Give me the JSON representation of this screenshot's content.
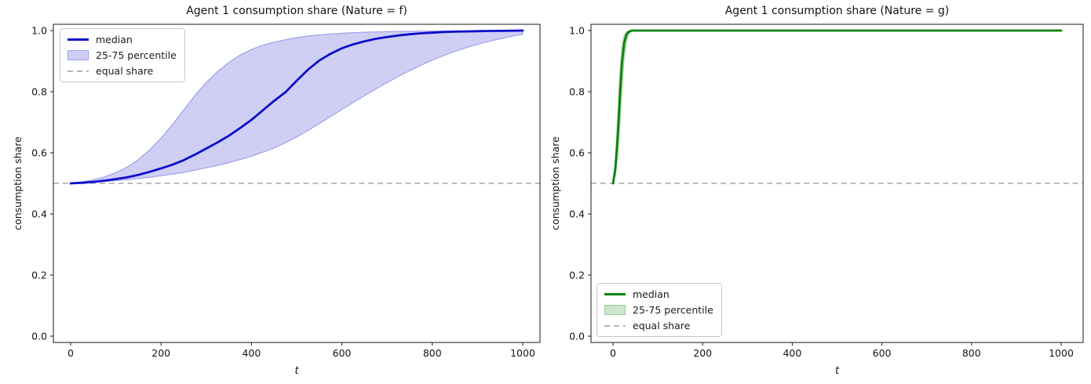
{
  "figure": {
    "background": "#ffffff",
    "spine_color": "#1a1a1a"
  },
  "chart_data": [
    {
      "type": "line",
      "title": "Agent 1 consumption share (Nature = f)",
      "xlabel": "t",
      "ylabel": "consumption share",
      "xlim": [
        0,
        1000
      ],
      "ylim": [
        0.0,
        1.0
      ],
      "grid": false,
      "legend_pos": "upper left",
      "x_ticks": [
        0,
        200,
        400,
        600,
        800,
        1000
      ],
      "y_ticks": [
        "0.0",
        "0.2",
        "0.4",
        "0.6",
        "0.8",
        "1.0"
      ],
      "median_color": "#0d0dcd",
      "band_fill": "#cfcff5",
      "band_edge": "#a0a0ea",
      "equal_share": 0.5,
      "equal_color": "#b4b4b4",
      "legend": [
        {
          "label": "median",
          "swatch": "line",
          "color": "#0d0dcd"
        },
        {
          "label": "25-75 percentile",
          "swatch": "patch",
          "fill": "#cfcff5",
          "edge": "#a0a0ea"
        },
        {
          "label": "equal share",
          "swatch": "dash",
          "color": "#b4b4b4"
        }
      ],
      "x": [
        0,
        25,
        50,
        75,
        100,
        125,
        150,
        175,
        200,
        225,
        250,
        275,
        300,
        325,
        350,
        375,
        400,
        425,
        450,
        475,
        500,
        525,
        550,
        575,
        600,
        625,
        650,
        675,
        700,
        725,
        750,
        775,
        800,
        825,
        850,
        875,
        900,
        925,
        950,
        975,
        1000
      ],
      "series": [
        {
          "name": "median",
          "values": [
            0.5,
            0.502,
            0.505,
            0.509,
            0.514,
            0.52,
            0.528,
            0.538,
            0.549,
            0.561,
            0.576,
            0.594,
            0.614,
            0.634,
            0.656,
            0.681,
            0.708,
            0.739,
            0.77,
            0.798,
            0.836,
            0.872,
            0.902,
            0.924,
            0.942,
            0.955,
            0.965,
            0.973,
            0.979,
            0.984,
            0.988,
            0.991,
            0.993,
            0.995,
            0.9963,
            0.9972,
            0.998,
            0.9986,
            0.999,
            0.9995,
            1.0
          ]
        },
        {
          "name": "p75",
          "values": [
            0.5,
            0.505,
            0.512,
            0.521,
            0.535,
            0.553,
            0.578,
            0.61,
            0.648,
            0.692,
            0.74,
            0.788,
            0.83,
            0.866,
            0.896,
            0.92,
            0.938,
            0.952,
            0.962,
            0.97,
            0.977,
            0.982,
            0.986,
            0.989,
            0.991,
            0.993,
            0.9945,
            0.9955,
            0.9963,
            0.997,
            0.9976,
            0.9981,
            0.9985,
            0.9988,
            0.999,
            0.9992,
            0.9994,
            0.9996,
            0.9997,
            0.9998,
            1.0
          ]
        },
        {
          "name": "p25",
          "values": [
            0.5,
            0.502,
            0.504,
            0.506,
            0.509,
            0.512,
            0.516,
            0.52,
            0.525,
            0.53,
            0.536,
            0.543,
            0.551,
            0.559,
            0.568,
            0.578,
            0.589,
            0.602,
            0.616,
            0.633,
            0.652,
            0.673,
            0.696,
            0.719,
            0.742,
            0.765,
            0.787,
            0.809,
            0.83,
            0.85,
            0.869,
            0.887,
            0.903,
            0.918,
            0.932,
            0.944,
            0.955,
            0.965,
            0.973,
            0.981,
            0.988
          ]
        }
      ]
    },
    {
      "type": "line",
      "title": "Agent 1 consumption share (Nature = g)",
      "xlabel": "t",
      "ylabel": "consumption share",
      "xlim": [
        0,
        1000
      ],
      "ylim": [
        0.0,
        1.0
      ],
      "grid": false,
      "legend_pos": "lower left",
      "x_ticks": [
        0,
        200,
        400,
        600,
        800,
        1000
      ],
      "y_ticks": [
        "0.0",
        "0.2",
        "0.4",
        "0.6",
        "0.8",
        "1.0"
      ],
      "median_color": "#0b830b",
      "band_fill": "#cce5cc",
      "band_edge": "#99cc99",
      "equal_share": 0.5,
      "equal_color": "#b4b4b4",
      "legend": [
        {
          "label": "median",
          "swatch": "line",
          "color": "#0b830b"
        },
        {
          "label": "25-75 percentile",
          "swatch": "patch",
          "fill": "#cce5cc",
          "edge": "#99cc99"
        },
        {
          "label": "equal share",
          "swatch": "dash",
          "color": "#b4b4b4"
        }
      ],
      "x": [
        0,
        5,
        10,
        15,
        20,
        25,
        30,
        35,
        40,
        45,
        50,
        60,
        80,
        100,
        150,
        200,
        300,
        400,
        500,
        600,
        700,
        800,
        900,
        1000
      ],
      "series": [
        {
          "name": "median",
          "values": [
            0.5,
            0.545,
            0.64,
            0.775,
            0.895,
            0.96,
            0.987,
            0.996,
            0.999,
            1.0,
            1.0,
            1.0,
            1.0,
            1.0,
            1.0,
            1.0,
            1.0,
            1.0,
            1.0,
            1.0,
            1.0,
            1.0,
            1.0,
            1.0
          ]
        },
        {
          "name": "p75",
          "values": [
            0.5,
            0.575,
            0.7,
            0.85,
            0.945,
            0.983,
            0.995,
            0.999,
            1.0,
            1.0,
            1.0,
            1.0,
            1.0,
            1.0,
            1.0,
            1.0,
            1.0,
            1.0,
            1.0,
            1.0,
            1.0,
            1.0,
            1.0,
            1.0
          ]
        },
        {
          "name": "p25",
          "values": [
            0.5,
            0.525,
            0.585,
            0.69,
            0.82,
            0.915,
            0.965,
            0.988,
            0.996,
            0.999,
            1.0,
            1.0,
            1.0,
            1.0,
            1.0,
            1.0,
            1.0,
            1.0,
            1.0,
            1.0,
            1.0,
            1.0,
            1.0,
            1.0
          ]
        }
      ]
    }
  ]
}
